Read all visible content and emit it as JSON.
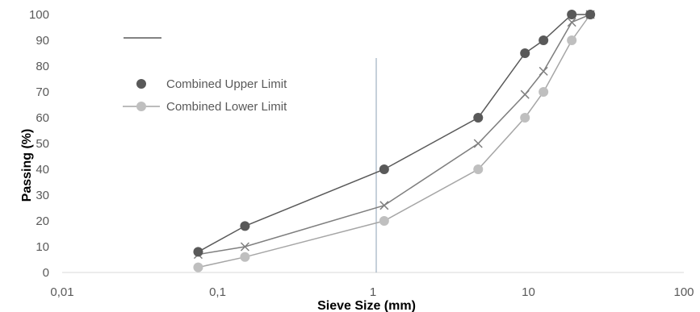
{
  "chart_data": {
    "type": "scatter",
    "xscale": "log",
    "xlabel": "Sieve Size (mm)",
    "ylabel": "Passing (%)",
    "xlim": [
      0.01,
      100
    ],
    "ylim": [
      0,
      100
    ],
    "x_tick_labels": [
      "0,01",
      "0,1",
      "1",
      "10",
      "100"
    ],
    "y_tick_labels": [
      "0",
      "10",
      "20",
      "30",
      "40",
      "50",
      "60",
      "70",
      "80",
      "90",
      "100"
    ],
    "grid": false,
    "legend_position": "top-left",
    "series": [
      {
        "name": "Combined Upper Limit",
        "marker": "circle",
        "color": "#595959",
        "x": [
          0.075,
          0.15,
          1.18,
          4.75,
          9.5,
          12.5,
          19,
          25
        ],
        "y": [
          8,
          18,
          40,
          60,
          85,
          90,
          100,
          100
        ]
      },
      {
        "name": "Combined Lower Limit",
        "marker": "circle",
        "color": "#a6a6a6",
        "x": [
          0.075,
          0.15,
          1.18,
          4.75,
          9.5,
          12.5,
          19,
          25
        ],
        "y": [
          2,
          6,
          20,
          40,
          60,
          70,
          90,
          100
        ]
      },
      {
        "marker": "x",
        "color": "#7f7f7f",
        "x": [
          0.075,
          0.15,
          1.18,
          4.75,
          9.5,
          12.5,
          19,
          25
        ],
        "y": [
          7,
          10,
          26,
          50,
          69,
          78,
          97,
          100
        ]
      }
    ]
  }
}
